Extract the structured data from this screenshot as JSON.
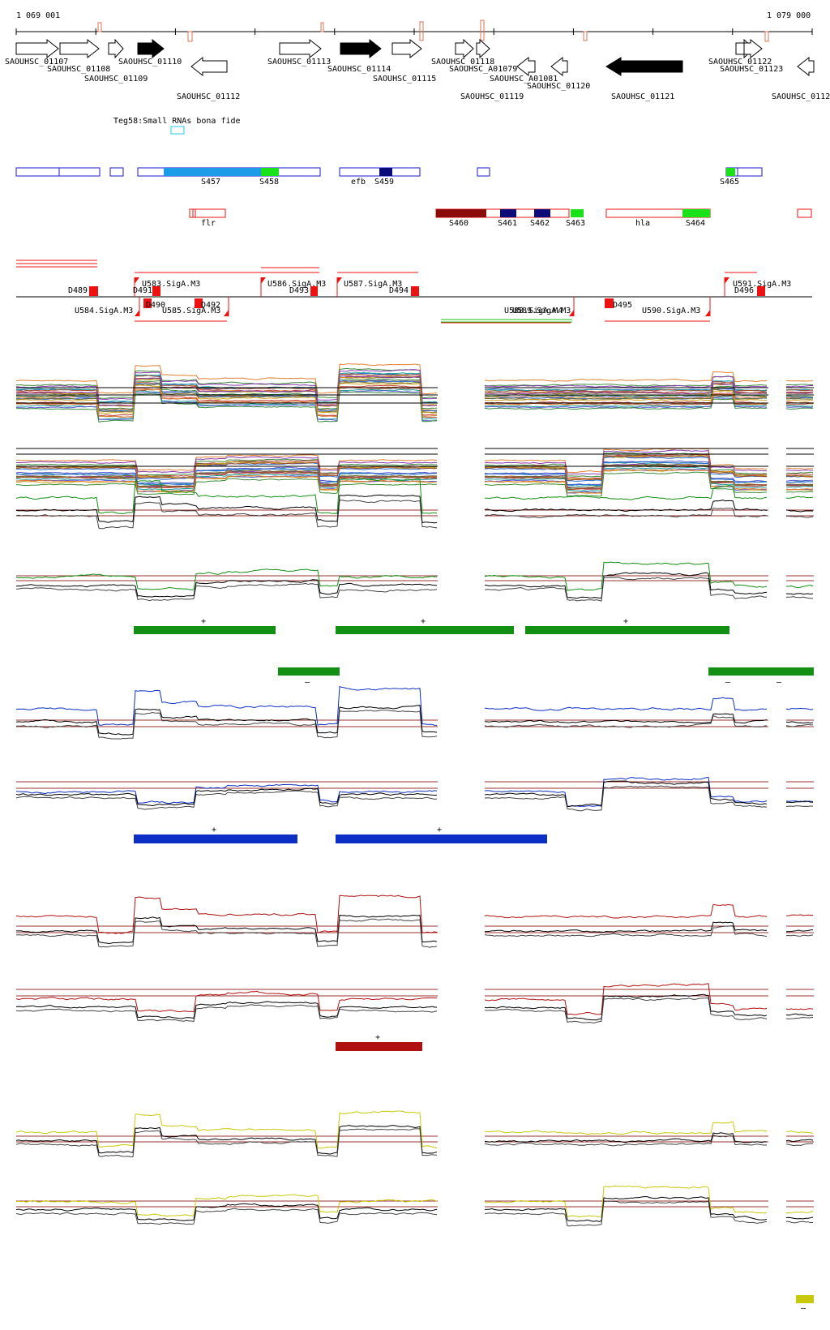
{
  "ruler": {
    "start_label": "1 069 001",
    "end_label": "1 079 000"
  },
  "genes": [
    {
      "label": "SAOUHSC_01107"
    },
    {
      "label": "SAOUHSC_01108"
    },
    {
      "label": "SAOUHSC_01109"
    },
    {
      "label": "SAOUHSC_01110"
    },
    {
      "label": "SAOUHSC_01112"
    },
    {
      "label": "SAOUHSC_01113"
    },
    {
      "label": "SAOUHSC_01114"
    },
    {
      "label": "SAOUHSC_01115"
    },
    {
      "label": "SAOUHSC_01118"
    },
    {
      "label": "SAOUHSC_A01079"
    },
    {
      "label": "SAOUHSC_A01081"
    },
    {
      "label": "SAOUHSC_01119"
    },
    {
      "label": "SAOUHSC_01120"
    },
    {
      "label": "SAOUHSC_01121"
    },
    {
      "label": "SAOUHSC_01122"
    },
    {
      "label": "SAOUHSC_01123"
    },
    {
      "label": "SAOUHSC_0112"
    }
  ],
  "teg_label": "Teg58:Small RNAs bona fide",
  "segments_row1": [
    {
      "label": "S457"
    },
    {
      "label": "S458"
    },
    {
      "label": "efb"
    },
    {
      "label": "S459"
    },
    {
      "label": "S465"
    }
  ],
  "segments_row2": [
    {
      "label": "flr"
    },
    {
      "label": "S460"
    },
    {
      "label": "S461"
    },
    {
      "label": "S462"
    },
    {
      "label": "S463"
    },
    {
      "label": "hla"
    },
    {
      "label": "S464"
    }
  ],
  "features": [
    {
      "label": "D489"
    },
    {
      "label": "U583.SigA.M3"
    },
    {
      "label": "D491"
    },
    {
      "label": "D490"
    },
    {
      "label": "U584.SigA.M3"
    },
    {
      "label": "U585.SigA.M3"
    },
    {
      "label": "D492"
    },
    {
      "label": "U586.SigA.M3"
    },
    {
      "label": "D493"
    },
    {
      "label": "U587.SigA.M3"
    },
    {
      "label": "D494"
    },
    {
      "label": "U588.SigA.M4"
    },
    {
      "label": "U589.SigA.M3"
    },
    {
      "label": "D495"
    },
    {
      "label": "U590.SigA.M3"
    },
    {
      "label": "U591.SigA.M3"
    },
    {
      "label": "D496"
    }
  ],
  "strand": {
    "plus": "+",
    "minus": "–"
  },
  "colors": {
    "green": "#138f13",
    "blue": "#0b2fc4",
    "red": "#b01010",
    "yellow": "#c8c80a",
    "dark_red": "#8b0a0a",
    "navy": "#0a0a7a",
    "light_blue": "#1e9be8",
    "lime": "#19e219",
    "feature_red": "#ee1111",
    "gene_black": "#000000"
  }
}
